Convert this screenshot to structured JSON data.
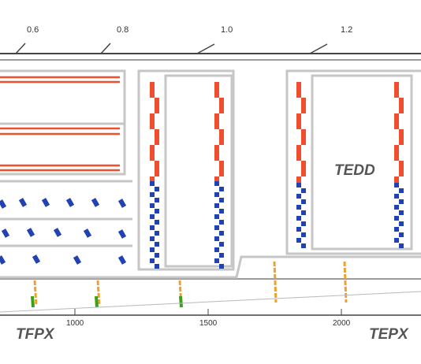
{
  "eta_ticks": [
    "0.6",
    "0.8",
    "1.0",
    "1.2"
  ],
  "z_ticks": [
    "1000",
    "1500",
    "2000"
  ],
  "detector_labels": {
    "tfpx": "TFPX",
    "tepx": "TEPX",
    "tedd": "TEDD"
  },
  "colors": {
    "strip_module": "#ef4f2f",
    "pixel_module": "#2142b3",
    "tfpx_disk": "#f0a030",
    "tfpx_ring": "#3aa020",
    "frame": "#c6c6c6",
    "frame_dark": "#9a9a9a"
  }
}
